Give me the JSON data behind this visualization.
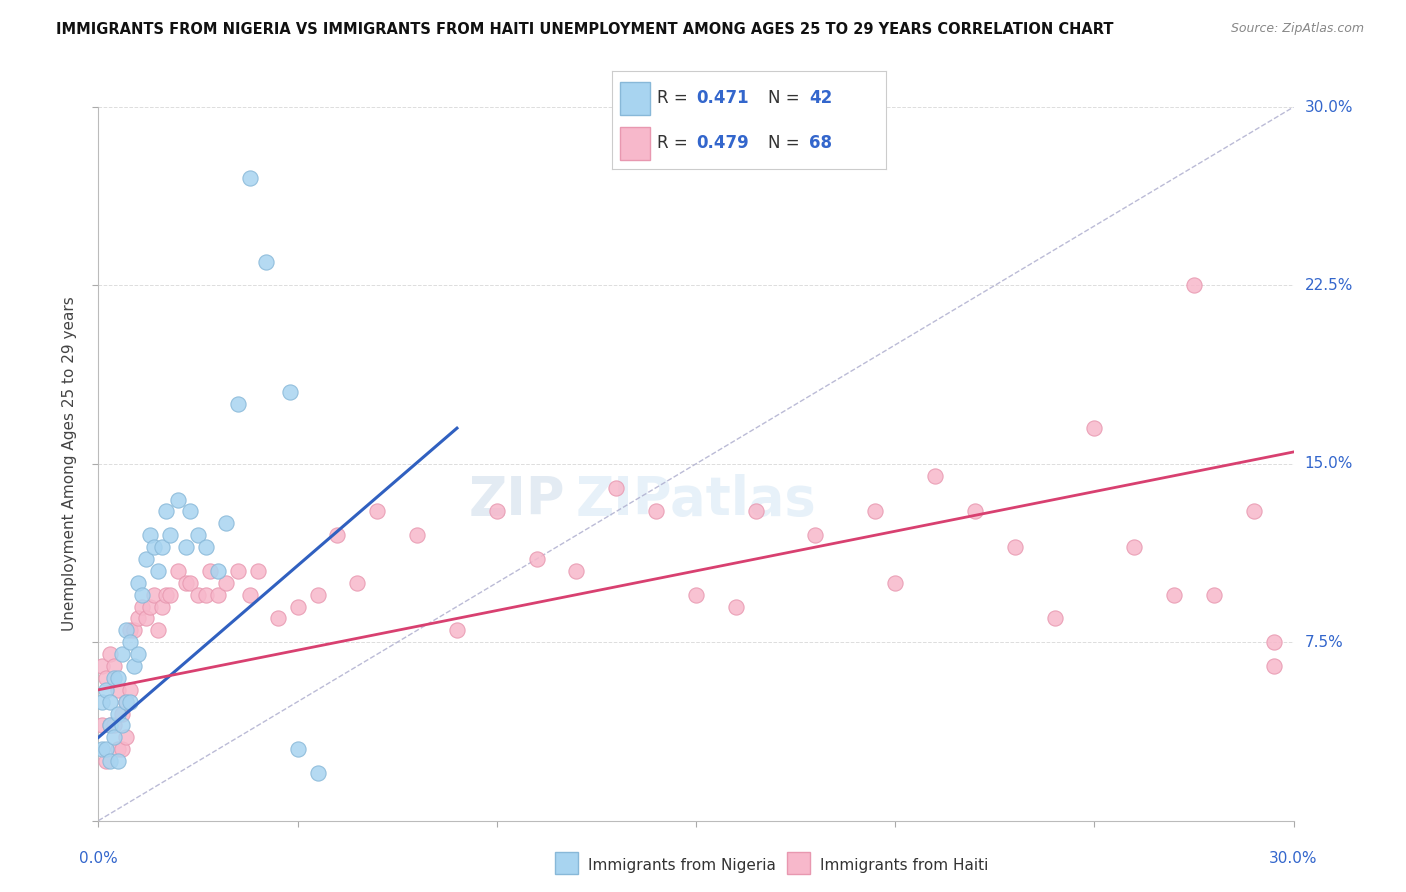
{
  "title": "IMMIGRANTS FROM NIGERIA VS IMMIGRANTS FROM HAITI UNEMPLOYMENT AMONG AGES 25 TO 29 YEARS CORRELATION CHART",
  "source": "Source: ZipAtlas.com",
  "ylabel": "Unemployment Among Ages 25 to 29 years",
  "ytick_labels": [
    "7.5%",
    "15.0%",
    "22.5%",
    "30.0%"
  ],
  "ytick_values": [
    0.075,
    0.15,
    0.225,
    0.3
  ],
  "xlim": [
    0.0,
    0.3
  ],
  "ylim": [
    0.0,
    0.3
  ],
  "nigeria_color": "#a8d4f0",
  "haiti_color": "#f7b8cb",
  "nigeria_edge": "#88b8d8",
  "haiti_edge": "#e898b0",
  "trendline_nigeria_color": "#3060c0",
  "trendline_haiti_color": "#d84070",
  "trendline_diagonal_color": "#aaaacc",
  "nigeria_R": 0.471,
  "nigeria_N": 42,
  "haiti_R": 0.479,
  "haiti_N": 68,
  "scatter_label1": "Immigrants from Nigeria",
  "scatter_label2": "Immigrants from Haiti",
  "nigeria_x": [
    0.001,
    0.001,
    0.002,
    0.002,
    0.003,
    0.003,
    0.003,
    0.004,
    0.004,
    0.005,
    0.005,
    0.005,
    0.006,
    0.006,
    0.007,
    0.007,
    0.008,
    0.008,
    0.009,
    0.01,
    0.01,
    0.011,
    0.012,
    0.013,
    0.014,
    0.015,
    0.016,
    0.017,
    0.018,
    0.02,
    0.022,
    0.023,
    0.025,
    0.027,
    0.03,
    0.032,
    0.035,
    0.038,
    0.042,
    0.048,
    0.05,
    0.055
  ],
  "nigeria_y": [
    0.03,
    0.05,
    0.03,
    0.055,
    0.025,
    0.04,
    0.05,
    0.035,
    0.06,
    0.025,
    0.045,
    0.06,
    0.04,
    0.07,
    0.05,
    0.08,
    0.05,
    0.075,
    0.065,
    0.07,
    0.1,
    0.095,
    0.11,
    0.12,
    0.115,
    0.105,
    0.115,
    0.13,
    0.12,
    0.135,
    0.115,
    0.13,
    0.12,
    0.115,
    0.105,
    0.125,
    0.175,
    0.27,
    0.235,
    0.18,
    0.03,
    0.02
  ],
  "haiti_x": [
    0.001,
    0.001,
    0.002,
    0.002,
    0.003,
    0.003,
    0.004,
    0.004,
    0.005,
    0.005,
    0.006,
    0.006,
    0.007,
    0.007,
    0.008,
    0.008,
    0.009,
    0.01,
    0.011,
    0.012,
    0.013,
    0.014,
    0.015,
    0.016,
    0.017,
    0.018,
    0.02,
    0.022,
    0.023,
    0.025,
    0.027,
    0.028,
    0.03,
    0.032,
    0.035,
    0.038,
    0.04,
    0.045,
    0.05,
    0.055,
    0.06,
    0.065,
    0.07,
    0.08,
    0.09,
    0.1,
    0.11,
    0.12,
    0.13,
    0.14,
    0.15,
    0.16,
    0.165,
    0.18,
    0.195,
    0.2,
    0.21,
    0.22,
    0.23,
    0.24,
    0.25,
    0.26,
    0.27,
    0.275,
    0.28,
    0.29,
    0.295,
    0.295
  ],
  "haiti_y": [
    0.04,
    0.065,
    0.025,
    0.06,
    0.04,
    0.07,
    0.04,
    0.065,
    0.03,
    0.055,
    0.03,
    0.045,
    0.035,
    0.05,
    0.055,
    0.08,
    0.08,
    0.085,
    0.09,
    0.085,
    0.09,
    0.095,
    0.08,
    0.09,
    0.095,
    0.095,
    0.105,
    0.1,
    0.1,
    0.095,
    0.095,
    0.105,
    0.095,
    0.1,
    0.105,
    0.095,
    0.105,
    0.085,
    0.09,
    0.095,
    0.12,
    0.1,
    0.13,
    0.12,
    0.08,
    0.13,
    0.11,
    0.105,
    0.14,
    0.13,
    0.095,
    0.09,
    0.13,
    0.12,
    0.13,
    0.1,
    0.145,
    0.13,
    0.115,
    0.085,
    0.165,
    0.115,
    0.095,
    0.225,
    0.095,
    0.13,
    0.075,
    0.065
  ],
  "trendline_nig_x0": 0.0,
  "trendline_nig_y0": 0.035,
  "trendline_nig_x1": 0.09,
  "trendline_nig_y1": 0.165,
  "trendline_hai_x0": 0.0,
  "trendline_hai_y0": 0.055,
  "trendline_hai_x1": 0.3,
  "trendline_hai_y1": 0.155
}
